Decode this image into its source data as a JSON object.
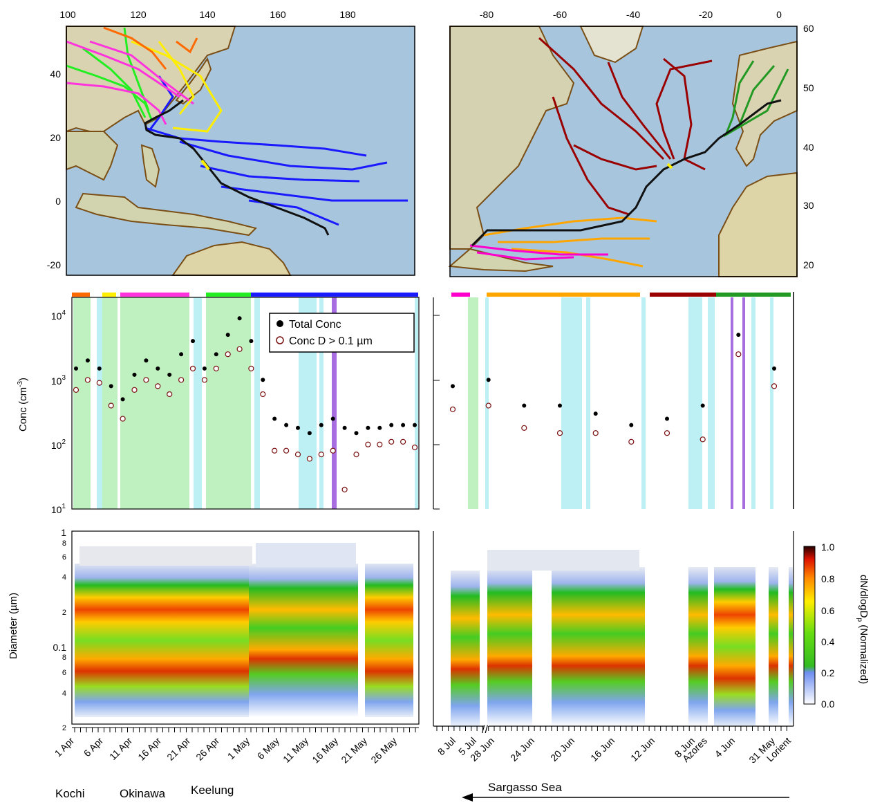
{
  "maps": [
    {
      "name": "west-pacific-map",
      "x_ticks": [
        "100",
        "120",
        "140",
        "160",
        "180"
      ],
      "y_ticks": [
        "40",
        "20",
        "0",
        "-20"
      ],
      "trajectory_colors": [
        "#ff6a00",
        "#ffee00",
        "#ff33dd",
        "#22ee22",
        "#1a1aff"
      ]
    },
    {
      "name": "north-atlantic-map",
      "x_ticks": [
        "-80",
        "-60",
        "-40",
        "-20",
        "0"
      ],
      "y_ticks": [
        "60",
        "50",
        "40",
        "30",
        "20"
      ],
      "trajectory_colors": [
        "#ff00cc",
        "#ffa500",
        "#9a0000",
        "#229922"
      ]
    }
  ],
  "conc_axis": {
    "label": "Conc (cm",
    "label_sup": "-3",
    "label_end": ")",
    "ticks": [
      {
        "base": "10",
        "exp": "4"
      },
      {
        "base": "10",
        "exp": "3"
      },
      {
        "base": "10",
        "exp": "2"
      },
      {
        "base": "10",
        "exp": "1"
      }
    ]
  },
  "legend": {
    "total": "Total Conc",
    "sub": "Conc D > 0.1 µm"
  },
  "diam_axis": {
    "label": "Diameter (µm)",
    "ticks_major": [
      "1",
      "0.1"
    ],
    "ticks_minor": [
      "8",
      "6",
      "4",
      "2",
      "8",
      "6",
      "4",
      "2"
    ]
  },
  "colorbar": {
    "label_main": "dN/dlogD",
    "label_sub": "p",
    "label_end": " (Normalized)",
    "ticks": [
      "1.0",
      "0.8",
      "0.6",
      "0.4",
      "0.2",
      "0.0"
    ]
  },
  "x_axis_left": {
    "labels": [
      "1 Apr",
      "6 Apr",
      "11 Apr",
      "16 Apr",
      "21 Apr",
      "26 Apr",
      "1 May",
      "6 May",
      "11 May",
      "16 May",
      "21 May",
      "26 May"
    ]
  },
  "x_axis_right": {
    "labels": [
      "8 Jul",
      "5 Jul",
      "28 Jun",
      "24 Jun",
      "20 Jun",
      "16 Jun",
      "12 Jun",
      "8 Jun",
      "Azores",
      "4 Jun",
      "31 May",
      "Lorient"
    ]
  },
  "locations_left": [
    "Kochi",
    "Okinawa",
    "Keelung"
  ],
  "location_right": "Sargasso Sea",
  "chart_data": [
    {
      "type": "scatter",
      "panel": "west-pacific-concentration",
      "xlabel": "",
      "ylabel": "Conc (cm-3)",
      "y_scale": "log",
      "ylim": [
        10,
        20000
      ],
      "xlim": [
        "1 Apr",
        "30 May"
      ],
      "series": [
        {
          "name": "Total Conc",
          "x": [
            "1 Apr",
            "3 Apr",
            "5 Apr",
            "7 Apr",
            "9 Apr",
            "11 Apr",
            "13 Apr",
            "15 Apr",
            "17 Apr",
            "19 Apr",
            "21 Apr",
            "23 Apr",
            "25 Apr",
            "27 Apr",
            "29 Apr",
            "1 May",
            "3 May",
            "5 May",
            "7 May",
            "9 May",
            "11 May",
            "13 May",
            "15 May",
            "17 May",
            "19 May",
            "21 May",
            "23 May",
            "25 May",
            "27 May",
            "29 May"
          ],
          "values": [
            1500,
            2000,
            1500,
            800,
            500,
            1200,
            2000,
            1500,
            1200,
            2500,
            4000,
            1500,
            2500,
            5000,
            9000,
            4000,
            1000,
            250,
            200,
            180,
            150,
            200,
            250,
            180,
            150,
            180,
            180,
            200,
            200,
            200
          ]
        },
        {
          "name": "Conc D > 0.1 µm",
          "x": [
            "1 Apr",
            "3 Apr",
            "5 Apr",
            "7 Apr",
            "9 Apr",
            "11 Apr",
            "13 Apr",
            "15 Apr",
            "17 Apr",
            "19 Apr",
            "21 Apr",
            "23 Apr",
            "25 Apr",
            "27 Apr",
            "29 Apr",
            "1 May",
            "3 May",
            "5 May",
            "7 May",
            "9 May",
            "11 May",
            "13 May",
            "15 May",
            "17 May",
            "19 May",
            "21 May",
            "23 May",
            "25 May",
            "27 May",
            "29 May"
          ],
          "values": [
            700,
            1000,
            900,
            400,
            250,
            700,
            1000,
            800,
            600,
            1000,
            1500,
            1000,
            1500,
            2500,
            3000,
            1500,
            600,
            80,
            80,
            70,
            60,
            70,
            80,
            20,
            70,
            100,
            100,
            110,
            110,
            90
          ]
        }
      ]
    },
    {
      "type": "scatter",
      "panel": "atlantic-concentration",
      "xlabel": "",
      "ylabel": "Conc (cm-3)",
      "y_scale": "log",
      "ylim": [
        10,
        20000
      ],
      "series": [
        {
          "name": "Total Conc",
          "x": [
            "8 Jul",
            "5 Jul",
            "28 Jun",
            "24 Jun",
            "20 Jun",
            "16 Jun",
            "12 Jun",
            "8 Jun",
            "4 Jun",
            "31 May"
          ],
          "values": [
            800,
            1000,
            400,
            400,
            300,
            200,
            250,
            400,
            5000,
            1500
          ]
        },
        {
          "name": "Conc D > 0.1 µm",
          "x": [
            "8 Jul",
            "5 Jul",
            "28 Jun",
            "24 Jun",
            "20 Jun",
            "16 Jun",
            "12 Jun",
            "8 Jun",
            "4 Jun",
            "31 May"
          ],
          "values": [
            350,
            400,
            180,
            150,
            150,
            110,
            150,
            120,
            2500,
            800
          ]
        }
      ]
    },
    {
      "type": "heatmap",
      "panel": "size-distribution",
      "ylabel": "Diameter (µm)",
      "y_scale": "log",
      "ylim": [
        0.02,
        1
      ],
      "zlabel": "dN/dlogDp (Normalized)",
      "zlim": [
        0,
        1
      ]
    }
  ]
}
